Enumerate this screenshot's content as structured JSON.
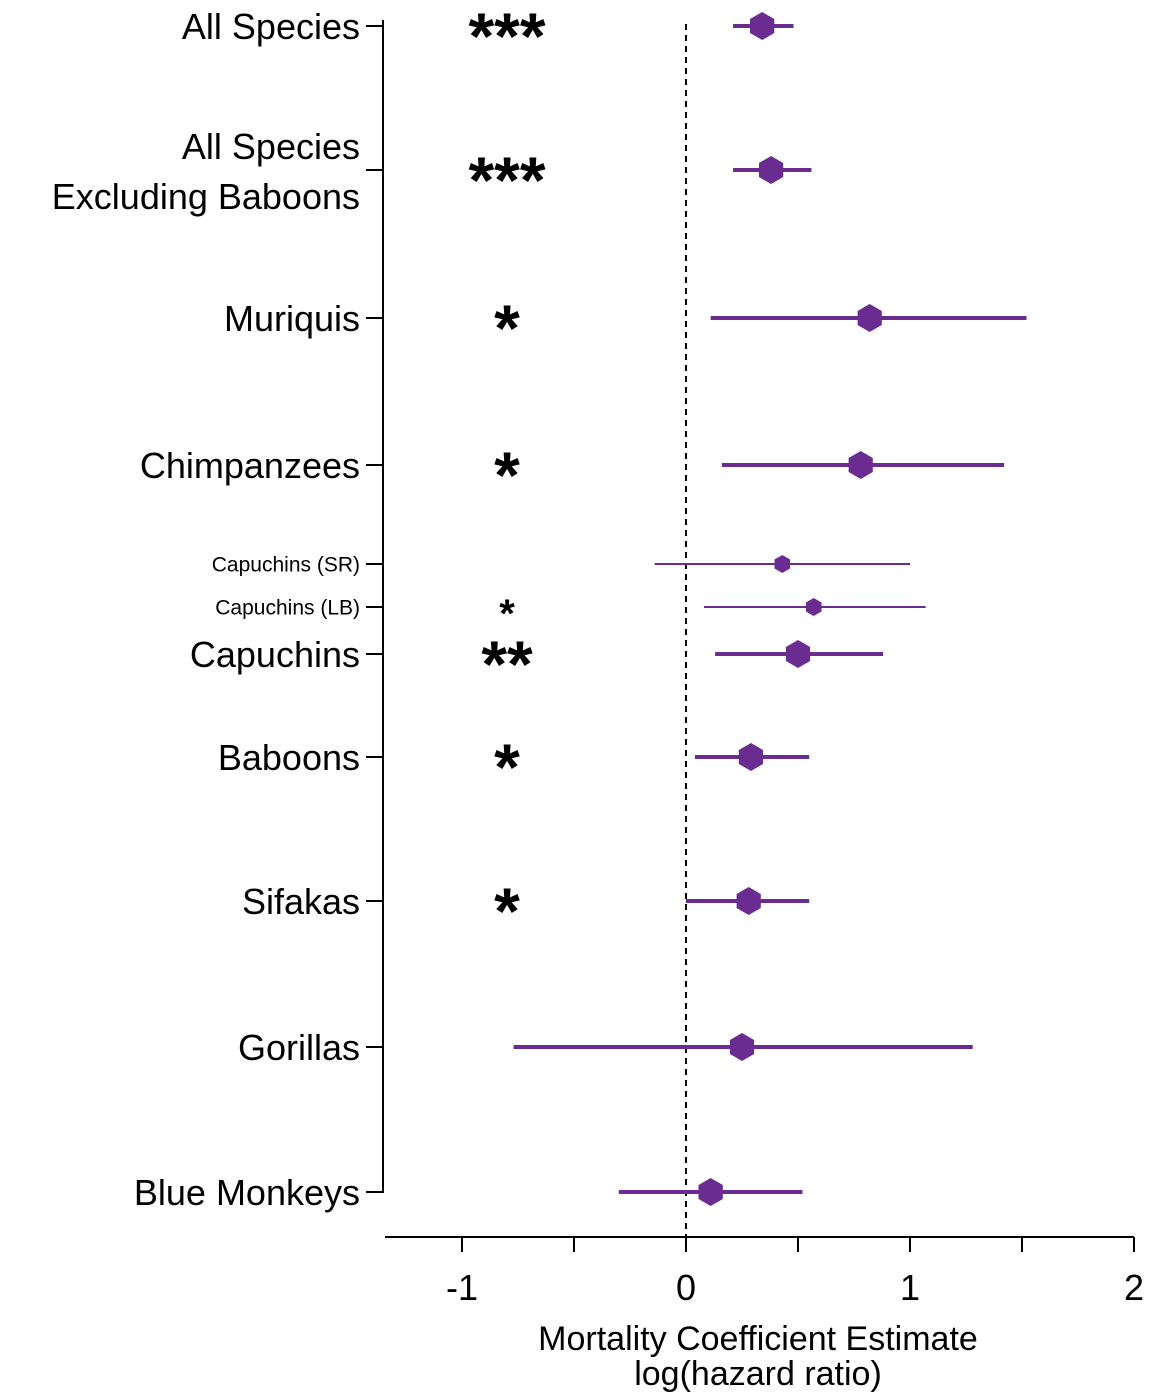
{
  "chart_data": {
    "type": "forest",
    "xlabel": "Mortality Coefficient Estimate",
    "xlabel_line2": "log(hazard ratio)",
    "xlim": [
      -1.3,
      2.0
    ],
    "x_ticks": [
      -1,
      -0.5,
      0,
      0.5,
      1,
      1.5,
      2
    ],
    "x_tick_labels": [
      "-1",
      "",
      "0",
      "",
      "1",
      "",
      "2"
    ],
    "reference_line": 0,
    "point_color": "#6a2c91",
    "rows": [
      {
        "label": "All Species",
        "estimate": 0.34,
        "lower": 0.21,
        "upper": 0.48,
        "significance": "***",
        "size": "large"
      },
      {
        "label": "All Species",
        "label_line2": "Excluding Baboons",
        "estimate": 0.38,
        "lower": 0.21,
        "upper": 0.56,
        "significance": "***",
        "size": "large"
      },
      {
        "label": "Muriquis",
        "estimate": 0.82,
        "lower": 0.11,
        "upper": 1.52,
        "significance": "*",
        "size": "large"
      },
      {
        "label": "Chimpanzees",
        "estimate": 0.78,
        "lower": 0.16,
        "upper": 1.42,
        "significance": "*",
        "size": "large"
      },
      {
        "label": "Capuchins (SR)",
        "estimate": 0.43,
        "lower": -0.14,
        "upper": 1.0,
        "significance": "",
        "size": "small"
      },
      {
        "label": "Capuchins (LB)",
        "estimate": 0.57,
        "lower": 0.08,
        "upper": 1.07,
        "significance": "*",
        "size": "small"
      },
      {
        "label": "Capuchins",
        "estimate": 0.5,
        "lower": 0.13,
        "upper": 0.88,
        "significance": "**",
        "size": "large"
      },
      {
        "label": "Baboons",
        "estimate": 0.29,
        "lower": 0.04,
        "upper": 0.55,
        "significance": "*",
        "size": "large"
      },
      {
        "label": "Sifakas",
        "estimate": 0.28,
        "lower": 0.0,
        "upper": 0.55,
        "significance": "*",
        "size": "large"
      },
      {
        "label": "Gorillas",
        "estimate": 0.25,
        "lower": -0.77,
        "upper": 1.28,
        "significance": "",
        "size": "large"
      },
      {
        "label": "Blue Monkeys",
        "estimate": 0.11,
        "lower": -0.3,
        "upper": 0.52,
        "significance": "",
        "size": "large"
      }
    ]
  }
}
